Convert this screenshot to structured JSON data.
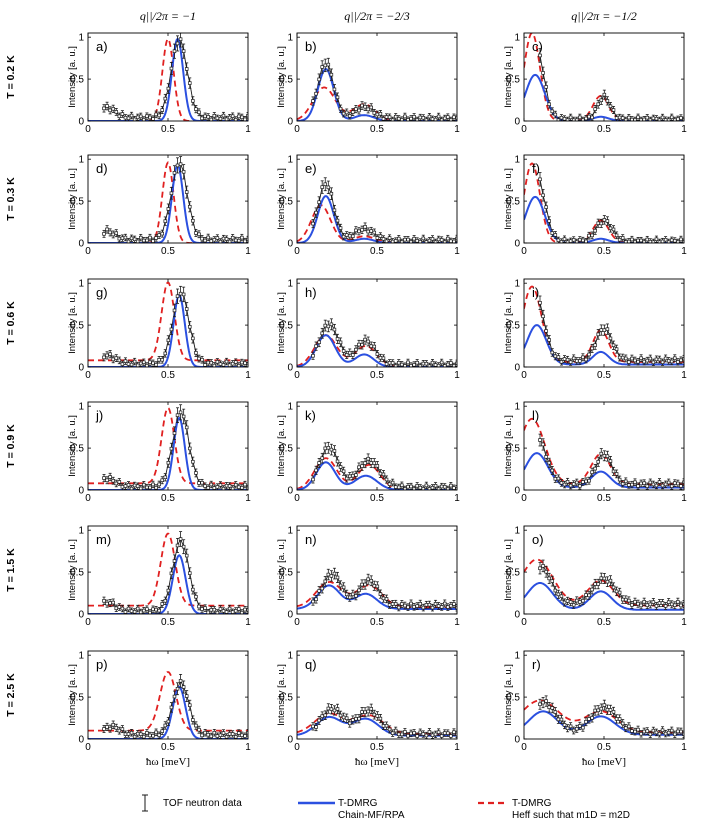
{
  "figure": {
    "column_titles": [
      "q||/2π = −1",
      "q||/2π = −2/3",
      "q||/2π = −1/2"
    ],
    "row_labels": [
      "T = 0.2 K",
      "T = 0.3 K",
      "T = 0.6 K",
      "T = 0.9 K",
      "T = 1.5 K",
      "T = 2.5 K"
    ],
    "ylabel": "Intensity [a. u.]",
    "xlabel": "ħω [meV]",
    "colors": {
      "tof": "#1a1a1a",
      "chain": "#2b50e0",
      "heff": "#e02020"
    },
    "legend": {
      "tof": "TOF neutron data",
      "chain_line1": "T-DMRG",
      "chain_line2": "Chain-MF/RPA",
      "heff_line1": "T-DMRG",
      "heff_line2": "Heff such that m1D = m2D"
    }
  },
  "chart_data": {
    "type": "line",
    "grid": false,
    "xlim": [
      0,
      1
    ],
    "ylim": [
      0,
      1.05
    ],
    "xticks": [
      "0",
      "0.5",
      "1"
    ],
    "yticks": [
      "0",
      "0.5",
      "1"
    ],
    "series_names": [
      "TOF neutron data",
      "T-DMRG Chain-MF/RPA",
      "T-DMRG Heff such that m1D = m2D"
    ],
    "panels": [
      {
        "label": "a)",
        "column": 0,
        "row": 0,
        "tof": {
          "peaks": [
            [
              0.57,
              0.93,
              0.05
            ],
            [
              0.12,
              0.12,
              0.05
            ]
          ],
          "base": 0.04
        },
        "chain": {
          "peaks": [
            [
              0.56,
              0.98,
              0.035
            ]
          ],
          "base": 0.0
        },
        "heff": {
          "peaks": [
            [
              0.5,
              0.98,
              0.035
            ]
          ],
          "base": 0.0
        }
      },
      {
        "label": "b)",
        "column": 1,
        "row": 0,
        "tof": {
          "peaks": [
            [
              0.18,
              0.66,
              0.05
            ],
            [
              0.42,
              0.14,
              0.06
            ]
          ],
          "base": 0.03
        },
        "chain": {
          "peaks": [
            [
              0.18,
              0.62,
              0.05
            ],
            [
              0.42,
              0.07,
              0.06
            ]
          ],
          "base": 0.0
        },
        "heff": {
          "peaks": [
            [
              0.17,
              0.4,
              0.07
            ],
            [
              0.42,
              0.2,
              0.07
            ]
          ],
          "base": 0.0
        }
      },
      {
        "label": "c)",
        "column": 2,
        "row": 0,
        "tof": {
          "peaks": [
            [
              0.07,
              0.92,
              0.05
            ],
            [
              0.5,
              0.27,
              0.04
            ]
          ],
          "base": 0.02
        },
        "chain": {
          "peaks": [
            [
              0.07,
              0.55,
              0.06
            ],
            [
              0.48,
              0.05,
              0.05
            ]
          ],
          "base": 0.0
        },
        "heff": {
          "peaks": [
            [
              0.05,
              1.05,
              0.05
            ],
            [
              0.48,
              0.3,
              0.05
            ]
          ],
          "base": 0.0
        }
      },
      {
        "label": "d)",
        "column": 0,
        "row": 1,
        "tof": {
          "peaks": [
            [
              0.57,
              0.92,
              0.05
            ],
            [
              0.12,
              0.1,
              0.05
            ]
          ],
          "base": 0.04
        },
        "chain": {
          "peaks": [
            [
              0.56,
              0.93,
              0.035
            ]
          ],
          "base": 0.0
        },
        "heff": {
          "peaks": [
            [
              0.5,
              0.96,
              0.035
            ]
          ],
          "base": 0.0
        }
      },
      {
        "label": "e)",
        "column": 1,
        "row": 1,
        "tof": {
          "peaks": [
            [
              0.18,
              0.68,
              0.05
            ],
            [
              0.42,
              0.14,
              0.06
            ]
          ],
          "base": 0.03
        },
        "chain": {
          "peaks": [
            [
              0.18,
              0.56,
              0.05
            ],
            [
              0.42,
              0.05,
              0.06
            ]
          ],
          "base": 0.0
        },
        "heff": {
          "peaks": [
            [
              0.15,
              0.45,
              0.06
            ],
            [
              0.42,
              0.08,
              0.07
            ]
          ],
          "base": 0.0
        }
      },
      {
        "label": "f)",
        "column": 2,
        "row": 1,
        "tof": {
          "peaks": [
            [
              0.08,
              0.78,
              0.05
            ],
            [
              0.5,
              0.25,
              0.05
            ]
          ],
          "base": 0.02
        },
        "chain": {
          "peaks": [
            [
              0.07,
              0.55,
              0.06
            ],
            [
              0.48,
              0.05,
              0.05
            ]
          ],
          "base": 0.0
        },
        "heff": {
          "peaks": [
            [
              0.05,
              0.95,
              0.05
            ],
            [
              0.48,
              0.27,
              0.05
            ]
          ],
          "base": 0.0
        }
      },
      {
        "label": "g)",
        "column": 0,
        "row": 2,
        "tof": {
          "peaks": [
            [
              0.58,
              0.86,
              0.05
            ],
            [
              0.12,
              0.1,
              0.05
            ]
          ],
          "base": 0.04
        },
        "chain": {
          "peaks": [
            [
              0.57,
              0.86,
              0.035
            ]
          ],
          "base": 0.0
        },
        "heff": {
          "peaks": [
            [
              0.5,
              0.93,
              0.04
            ]
          ],
          "base": 0.08
        }
      },
      {
        "label": "h)",
        "column": 1,
        "row": 2,
        "tof": {
          "peaks": [
            [
              0.2,
              0.48,
              0.06
            ],
            [
              0.43,
              0.28,
              0.06
            ]
          ],
          "base": 0.03
        },
        "chain": {
          "peaks": [
            [
              0.18,
              0.38,
              0.06
            ],
            [
              0.42,
              0.15,
              0.06
            ]
          ],
          "base": 0.0
        },
        "heff": {
          "peaks": [
            [
              0.18,
              0.38,
              0.07
            ],
            [
              0.43,
              0.25,
              0.07
            ]
          ],
          "base": 0.0
        }
      },
      {
        "label": "i)",
        "column": 2,
        "row": 2,
        "tof": {
          "peaks": [
            [
              0.08,
              0.72,
              0.05
            ],
            [
              0.5,
              0.38,
              0.05
            ]
          ],
          "base": 0.08
        },
        "chain": {
          "peaks": [
            [
              0.08,
              0.47,
              0.06
            ],
            [
              0.48,
              0.15,
              0.05
            ]
          ],
          "base": 0.03
        },
        "heff": {
          "peaks": [
            [
              0.05,
              0.9,
              0.06
            ],
            [
              0.48,
              0.38,
              0.05
            ]
          ],
          "base": 0.06
        }
      },
      {
        "label": "j)",
        "column": 0,
        "row": 3,
        "tof": {
          "peaks": [
            [
              0.58,
              0.9,
              0.05
            ],
            [
              0.12,
              0.1,
              0.05
            ]
          ],
          "base": 0.04
        },
        "chain": {
          "peaks": [
            [
              0.57,
              0.86,
              0.035
            ]
          ],
          "base": 0.0
        },
        "heff": {
          "peaks": [
            [
              0.5,
              0.9,
              0.04
            ]
          ],
          "base": 0.08
        }
      },
      {
        "label": "k)",
        "column": 1,
        "row": 3,
        "tof": {
          "peaks": [
            [
              0.2,
              0.48,
              0.06
            ],
            [
              0.45,
              0.32,
              0.07
            ]
          ],
          "base": 0.03
        },
        "chain": {
          "peaks": [
            [
              0.18,
              0.33,
              0.06
            ],
            [
              0.43,
              0.17,
              0.07
            ]
          ],
          "base": 0.0
        },
        "heff": {
          "peaks": [
            [
              0.18,
              0.38,
              0.07
            ],
            [
              0.45,
              0.3,
              0.07
            ]
          ],
          "base": 0.0
        }
      },
      {
        "label": "l)",
        "column": 2,
        "row": 3,
        "tof": {
          "peaks": [
            [
              0.08,
              0.56,
              0.06
            ],
            [
              0.5,
              0.36,
              0.05
            ]
          ],
          "base": 0.07
        },
        "chain": {
          "peaks": [
            [
              0.08,
              0.41,
              0.07
            ],
            [
              0.48,
              0.19,
              0.06
            ]
          ],
          "base": 0.03
        },
        "heff": {
          "peaks": [
            [
              0.05,
              0.78,
              0.08
            ],
            [
              0.48,
              0.36,
              0.06
            ]
          ],
          "base": 0.07
        }
      },
      {
        "label": "m)",
        "column": 0,
        "row": 4,
        "tof": {
          "peaks": [
            [
              0.58,
              0.84,
              0.05
            ],
            [
              0.12,
              0.1,
              0.05
            ]
          ],
          "base": 0.04
        },
        "chain": {
          "peaks": [
            [
              0.57,
              0.7,
              0.04
            ]
          ],
          "base": 0.0
        },
        "heff": {
          "peaks": [
            [
              0.5,
              0.86,
              0.045
            ]
          ],
          "base": 0.1
        }
      },
      {
        "label": "n)",
        "column": 1,
        "row": 4,
        "tof": {
          "peaks": [
            [
              0.22,
              0.38,
              0.06
            ],
            [
              0.45,
              0.3,
              0.06
            ]
          ],
          "base": 0.1
        },
        "chain": {
          "peaks": [
            [
              0.2,
              0.28,
              0.07
            ],
            [
              0.43,
              0.18,
              0.07
            ]
          ],
          "base": 0.06
        },
        "heff": {
          "peaks": [
            [
              0.2,
              0.3,
              0.08
            ],
            [
              0.45,
              0.26,
              0.08
            ]
          ],
          "base": 0.08
        }
      },
      {
        "label": "o)",
        "column": 2,
        "row": 4,
        "tof": {
          "peaks": [
            [
              0.1,
              0.45,
              0.07
            ],
            [
              0.5,
              0.3,
              0.07
            ]
          ],
          "base": 0.12
        },
        "chain": {
          "peaks": [
            [
              0.1,
              0.32,
              0.08
            ],
            [
              0.48,
              0.22,
              0.07
            ]
          ],
          "base": 0.05
        },
        "heff": {
          "peaks": [
            [
              0.08,
              0.55,
              0.1
            ],
            [
              0.48,
              0.3,
              0.08
            ]
          ],
          "base": 0.1
        }
      },
      {
        "label": "p)",
        "column": 0,
        "row": 5,
        "tof": {
          "peaks": [
            [
              0.58,
              0.62,
              0.05
            ],
            [
              0.15,
              0.1,
              0.05
            ]
          ],
          "base": 0.05
        },
        "chain": {
          "peaks": [
            [
              0.57,
              0.62,
              0.04
            ]
          ],
          "base": 0.0
        },
        "heff": {
          "peaks": [
            [
              0.5,
              0.7,
              0.05
            ]
          ],
          "base": 0.1
        }
      },
      {
        "label": "q)",
        "column": 1,
        "row": 5,
        "tof": {
          "peaks": [
            [
              0.22,
              0.3,
              0.07
            ],
            [
              0.45,
              0.28,
              0.07
            ]
          ],
          "base": 0.06
        },
        "chain": {
          "peaks": [
            [
              0.2,
              0.22,
              0.08
            ],
            [
              0.43,
              0.2,
              0.08
            ]
          ],
          "base": 0.04
        },
        "heff": {
          "peaks": [
            [
              0.2,
              0.24,
              0.09
            ],
            [
              0.45,
              0.22,
              0.09
            ]
          ],
          "base": 0.06
        }
      },
      {
        "label": "r)",
        "column": 2,
        "row": 5,
        "tof": {
          "peaks": [
            [
              0.12,
              0.36,
              0.08
            ],
            [
              0.5,
              0.3,
              0.08
            ]
          ],
          "base": 0.08
        },
        "chain": {
          "peaks": [
            [
              0.12,
              0.28,
              0.09
            ],
            [
              0.48,
              0.22,
              0.09
            ]
          ],
          "base": 0.05
        },
        "heff": {
          "peaks": [
            [
              0.1,
              0.38,
              0.12
            ],
            [
              0.48,
              0.25,
              0.1
            ]
          ],
          "base": 0.08
        }
      }
    ]
  }
}
